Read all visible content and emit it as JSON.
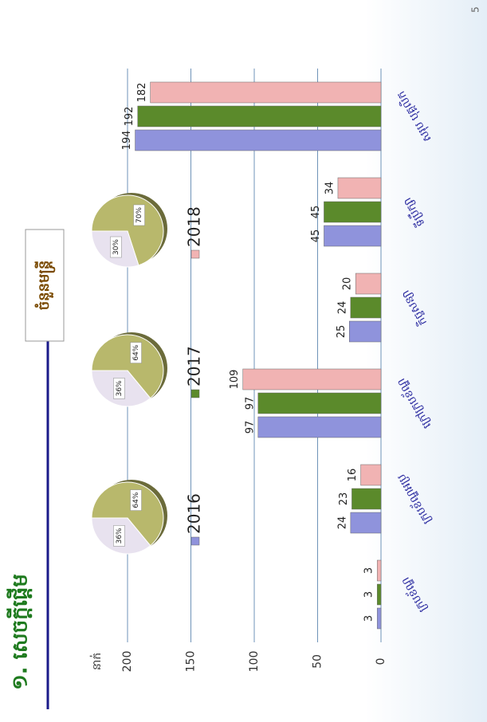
{
  "page_number": "5",
  "title": "១. សេចក្តីផ្តើម",
  "box_label": "ចំនួនមន្ត្រី",
  "chart_data": [
    {
      "type": "bar",
      "y_label": "នាក់",
      "categories": [
        "ក្របខ័ណ្ឌ",
        "ក្របខ័ណ្ឌអប្រ",
        "ក្រៅក្របខ័ណ្ឌ",
        "កិច្ចសន្យា",
        "ទីប្រឹក្សា",
        "សរុប បុគ្គលិក"
      ],
      "series": [
        {
          "name": "2016",
          "color": "#8f93dc",
          "values": [
            3,
            24,
            97,
            25,
            45,
            194
          ]
        },
        {
          "name": "2017",
          "color": "#5b8a2b",
          "values": [
            3,
            23,
            97,
            24,
            45,
            192
          ]
        },
        {
          "name": "2018",
          "color": "#f1b3b3",
          "values": [
            3,
            16,
            109,
            20,
            34,
            182
          ]
        }
      ],
      "ylim": [
        0,
        200
      ],
      "yticks": [
        0,
        50,
        100,
        150,
        200
      ],
      "grid": true
    },
    {
      "type": "pie",
      "values": [
        64,
        36
      ],
      "value_labels": [
        "64%",
        "36%"
      ],
      "colors": [
        "#b8b86c",
        "#e8e2ef"
      ]
    },
    {
      "type": "pie",
      "values": [
        64,
        36
      ],
      "value_labels": [
        "64%",
        "36%"
      ],
      "colors": [
        "#b8b86c",
        "#e8e2ef"
      ]
    },
    {
      "type": "pie",
      "values": [
        70,
        30
      ],
      "value_labels": [
        "70%",
        "30%"
      ],
      "colors": [
        "#b8b86c",
        "#e8e2ef"
      ]
    }
  ]
}
